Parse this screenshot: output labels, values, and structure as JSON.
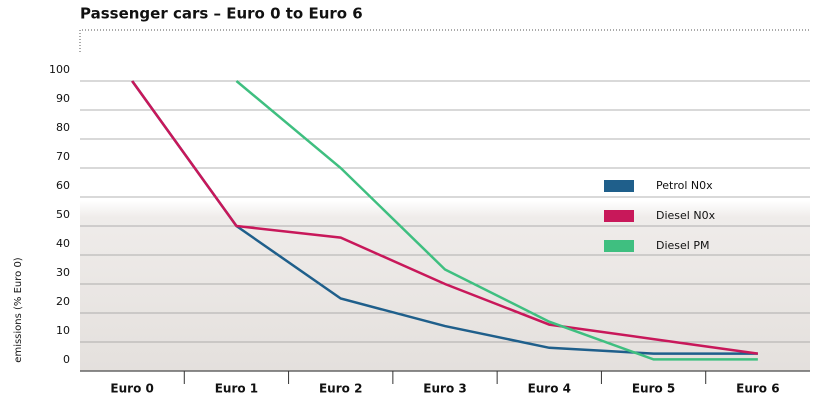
{
  "chart_data": {
    "type": "line",
    "title": "Passenger cars – Euro 0 to Euro 6",
    "y_label": "emissions (% Euro 0)",
    "categories": [
      "Euro 0",
      "Euro 1",
      "Euro 2",
      "Euro 3",
      "Euro 4",
      "Euro 5",
      "Euro 6"
    ],
    "series": [
      {
        "name": "Petrol N0x",
        "color": "#1f5f8b",
        "values": [
          100,
          50,
          25,
          15.5,
          8,
          6,
          6
        ]
      },
      {
        "name": "Diesel N0x",
        "color": "#c8185a",
        "values": [
          100,
          50,
          46,
          30,
          16,
          11,
          6
        ]
      },
      {
        "name": "Diesel PM",
        "color": "#3fbf80",
        "values": [
          null,
          100,
          70,
          35,
          17,
          4,
          4
        ]
      }
    ],
    "ylim": [
      0,
      100
    ],
    "yticks": [
      0,
      10,
      20,
      30,
      40,
      50,
      60,
      70,
      80,
      90,
      100
    ],
    "grid": true
  }
}
